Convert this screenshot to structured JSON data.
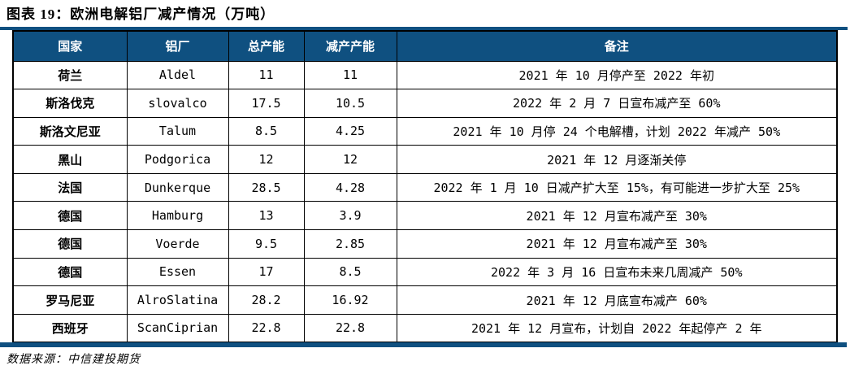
{
  "page": {
    "title": "图表 19：欧洲电解铝厂减产情况（万吨）",
    "source_note": "数据来源：中信建投期货"
  },
  "colors": {
    "accent": "#0F5080",
    "header_text": "#FFFFFF",
    "body_text": "#000000",
    "border": "#000000"
  },
  "table": {
    "columns": [
      "国家",
      "铝厂",
      "总产能",
      "减产产能",
      "备注"
    ],
    "column_keys": [
      "country",
      "plant",
      "total-capacity",
      "reduced-capacity",
      "remark"
    ],
    "rows": [
      [
        "荷兰",
        "Aldel",
        "11",
        "11",
        "2021 年 10 月停产至 2022 年初"
      ],
      [
        "斯洛伐克",
        "slovalco",
        "17.5",
        "10.5",
        "2022 年 2 月 7 日宣布减产至 60%"
      ],
      [
        "斯洛文尼亚",
        "Talum",
        "8.5",
        "4.25",
        "2021 年 10 月停 24 个电解槽，计划 2022 年减产 50%"
      ],
      [
        "黑山",
        "Podgorica",
        "12",
        "12",
        "2021 年 12 月逐渐关停"
      ],
      [
        "法国",
        "Dunkerque",
        "28.5",
        "4.28",
        "2022 年 1 月 10 日减产扩大至 15%，有可能进一步扩大至 25%"
      ],
      [
        "德国",
        "Hamburg",
        "13",
        "3.9",
        "2021 年 12 月宣布减产至 30%"
      ],
      [
        "德国",
        "Voerde",
        "9.5",
        "2.85",
        "2021 年 12 月宣布减产至 30%"
      ],
      [
        "德国",
        "Essen",
        "17",
        "8.5",
        "2022 年 3 月 16 日宣布未来几周减产 50%"
      ],
      [
        "罗马尼亚",
        "AlroSlatina",
        "28.2",
        "16.92",
        "2021 年 12 月底宣布减产 60%"
      ],
      [
        "西班牙",
        "ScanCiprian",
        "22.8",
        "22.8",
        "2021 年 12 月宣布，计划自 2022 年起停产 2 年"
      ]
    ]
  }
}
